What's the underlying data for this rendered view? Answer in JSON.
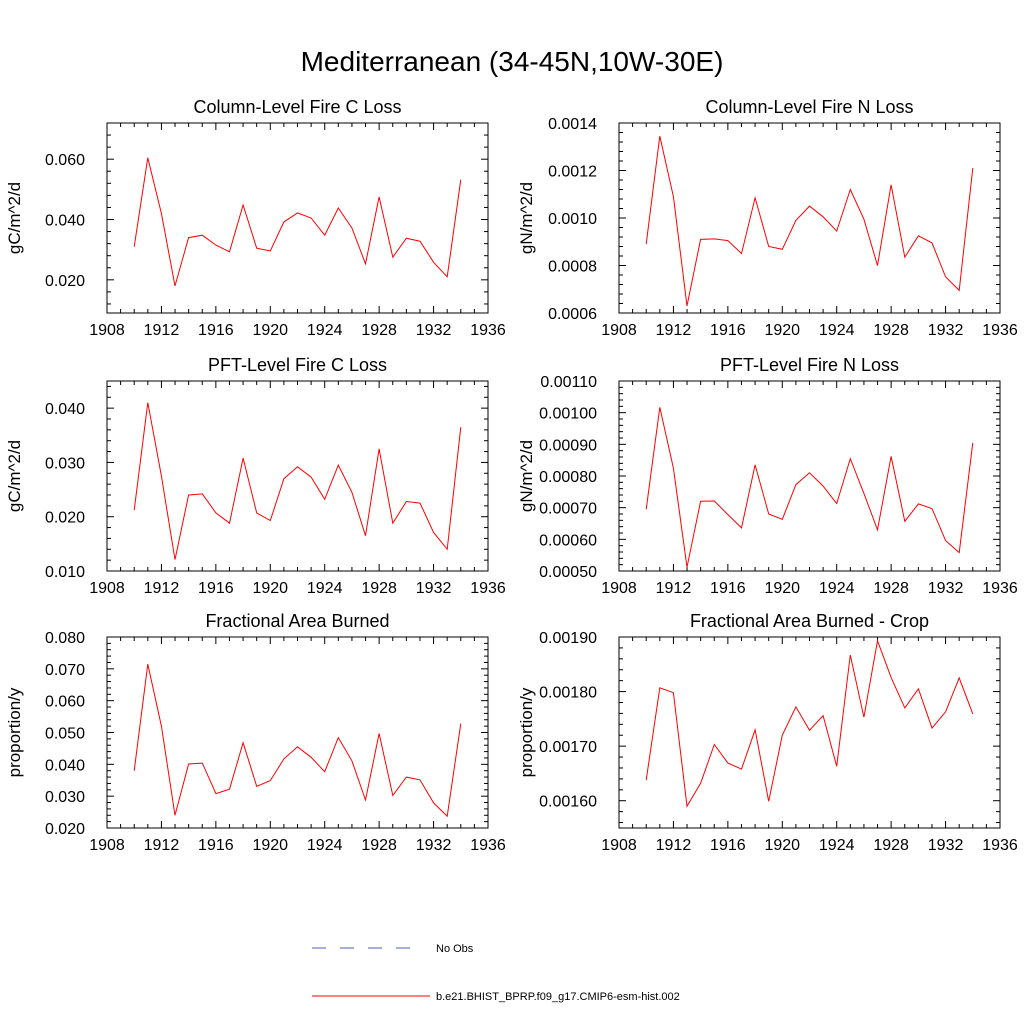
{
  "title": "Mediterranean (34-45N,10W-30E)",
  "legend": {
    "obs_label": "No Obs",
    "obs_color": "#4b5fb8",
    "model_label": "b.e21.BHIST_BPRP.f09_g17.CMIP6-esm-hist.002",
    "model_color": "#ff0000"
  },
  "chart_data": [
    {
      "type": "line",
      "title": "Column-Level Fire C Loss",
      "ylabel": "gC/m^2/d",
      "xlim": [
        1908,
        1936
      ],
      "xticks": [
        "1908",
        "1912",
        "1916",
        "1920",
        "1924",
        "1928",
        "1932",
        "1936"
      ],
      "ylim": [
        0.009,
        0.072
      ],
      "yticks": [
        "0.020",
        "0.040",
        "0.060"
      ],
      "x": [
        1910,
        1911,
        1912,
        1913,
        1914,
        1915,
        1916,
        1917,
        1918,
        1919,
        1920,
        1921,
        1922,
        1923,
        1924,
        1925,
        1926,
        1927,
        1928,
        1929,
        1930,
        1931,
        1932,
        1933,
        1934
      ],
      "series": [
        {
          "values": [
            0.031,
            0.0605,
            0.042,
            0.018,
            0.034,
            0.0348,
            0.0315,
            0.0293,
            0.0448,
            0.0305,
            0.0296,
            0.0392,
            0.0422,
            0.0405,
            0.0348,
            0.0438,
            0.0372,
            0.0253,
            0.0475,
            0.0275,
            0.0338,
            0.0328,
            0.0258,
            0.021,
            0.0532
          ]
        }
      ]
    },
    {
      "type": "line",
      "title": "Column-Level Fire N Loss",
      "ylabel": "gN/m^2/d",
      "xlim": [
        1908,
        1936
      ],
      "xticks": [
        "1908",
        "1912",
        "1916",
        "1920",
        "1924",
        "1928",
        "1932",
        "1936"
      ],
      "ylim": [
        0.0006,
        0.0014
      ],
      "yticks": [
        "0.0006",
        "0.0008",
        "0.0010",
        "0.0012",
        "0.0014"
      ],
      "x": [
        1910,
        1911,
        1912,
        1913,
        1914,
        1915,
        1916,
        1917,
        1918,
        1919,
        1920,
        1921,
        1922,
        1923,
        1924,
        1925,
        1926,
        1927,
        1928,
        1929,
        1930,
        1931,
        1932,
        1933,
        1934
      ],
      "series": [
        {
          "values": [
            0.00089,
            0.001345,
            0.00109,
            0.00063,
            0.00091,
            0.000912,
            0.000905,
            0.00085,
            0.001085,
            0.00088,
            0.000868,
            0.00099,
            0.00105,
            0.001005,
            0.000945,
            0.00112,
            0.000995,
            0.0008,
            0.00114,
            0.000835,
            0.000925,
            0.000895,
            0.000752,
            0.000695,
            0.00121
          ]
        }
      ]
    },
    {
      "type": "line",
      "title": "PFT-Level Fire C Loss",
      "ylabel": "gC/m^2/d",
      "xlim": [
        1908,
        1936
      ],
      "xticks": [
        "1908",
        "1912",
        "1916",
        "1920",
        "1924",
        "1928",
        "1932",
        "1936"
      ],
      "ylim": [
        0.01,
        0.045
      ],
      "yticks": [
        "0.010",
        "0.020",
        "0.030",
        "0.040"
      ],
      "x": [
        1910,
        1911,
        1912,
        1913,
        1914,
        1915,
        1916,
        1917,
        1918,
        1919,
        1920,
        1921,
        1922,
        1923,
        1924,
        1925,
        1926,
        1927,
        1928,
        1929,
        1930,
        1931,
        1932,
        1933,
        1934
      ],
      "series": [
        {
          "values": [
            0.0212,
            0.041,
            0.0275,
            0.0121,
            0.024,
            0.0242,
            0.0207,
            0.0188,
            0.0308,
            0.0207,
            0.0193,
            0.027,
            0.0292,
            0.0273,
            0.0232,
            0.0295,
            0.0245,
            0.0165,
            0.0325,
            0.0188,
            0.0228,
            0.0225,
            0.0171,
            0.014,
            0.0365
          ]
        }
      ]
    },
    {
      "type": "line",
      "title": "PFT-Level Fire N Loss",
      "ylabel": "gN/m^2/d",
      "xlim": [
        1908,
        1936
      ],
      "xticks": [
        "1908",
        "1912",
        "1916",
        "1920",
        "1924",
        "1928",
        "1932",
        "1936"
      ],
      "ylim": [
        0.0005,
        0.0011
      ],
      "yticks": [
        "0.00050",
        "0.00060",
        "0.00070",
        "0.00080",
        "0.00090",
        "0.00100",
        "0.00110"
      ],
      "x": [
        1910,
        1911,
        1912,
        1913,
        1914,
        1915,
        1916,
        1917,
        1918,
        1919,
        1920,
        1921,
        1922,
        1923,
        1924,
        1925,
        1926,
        1927,
        1928,
        1929,
        1930,
        1931,
        1932,
        1933,
        1934
      ],
      "series": [
        {
          "values": [
            0.000695,
            0.001017,
            0.000825,
            0.000512,
            0.00072,
            0.000721,
            0.000678,
            0.000636,
            0.000835,
            0.00068,
            0.000663,
            0.000773,
            0.00081,
            0.000768,
            0.000713,
            0.000855,
            0.000745,
            0.00063,
            0.000862,
            0.000657,
            0.000712,
            0.000697,
            0.000596,
            0.000558,
            0.000905
          ]
        }
      ]
    },
    {
      "type": "line",
      "title": "Fractional Area Burned",
      "ylabel": "proportion/y",
      "xlim": [
        1908,
        1936
      ],
      "xticks": [
        "1908",
        "1912",
        "1916",
        "1920",
        "1924",
        "1928",
        "1932",
        "1936"
      ],
      "ylim": [
        0.02,
        0.08
      ],
      "yticks": [
        "0.020",
        "0.030",
        "0.040",
        "0.050",
        "0.060",
        "0.070",
        "0.080"
      ],
      "x": [
        1910,
        1911,
        1912,
        1913,
        1914,
        1915,
        1916,
        1917,
        1918,
        1919,
        1920,
        1921,
        1922,
        1923,
        1924,
        1925,
        1926,
        1927,
        1928,
        1929,
        1930,
        1931,
        1932,
        1933,
        1934
      ],
      "series": [
        {
          "values": [
            0.038,
            0.0715,
            0.052,
            0.024,
            0.0401,
            0.0404,
            0.0308,
            0.0322,
            0.0468,
            0.0331,
            0.0349,
            0.0417,
            0.0455,
            0.0422,
            0.0377,
            0.0484,
            0.0411,
            0.0288,
            0.0497,
            0.0302,
            0.036,
            0.0351,
            0.0279,
            0.0237,
            0.0528
          ]
        }
      ]
    },
    {
      "type": "line",
      "title": "Fractional Area Burned - Crop",
      "ylabel": "proportion/y",
      "xlim": [
        1908,
        1936
      ],
      "xticks": [
        "1908",
        "1912",
        "1916",
        "1920",
        "1924",
        "1928",
        "1932",
        "1936"
      ],
      "ylim": [
        0.00155,
        0.0019
      ],
      "yticks": [
        "0.00160",
        "0.00170",
        "0.00180",
        "0.00190"
      ],
      "x": [
        1910,
        1911,
        1912,
        1913,
        1914,
        1915,
        1916,
        1917,
        1918,
        1919,
        1920,
        1921,
        1922,
        1923,
        1924,
        1925,
        1926,
        1927,
        1928,
        1929,
        1930,
        1931,
        1932,
        1933,
        1934
      ],
      "series": [
        {
          "values": [
            0.001638,
            0.001807,
            0.001798,
            0.00159,
            0.001632,
            0.001703,
            0.001669,
            0.001658,
            0.00173,
            0.001599,
            0.00172,
            0.001772,
            0.001729,
            0.001756,
            0.001663,
            0.001867,
            0.001753,
            0.001893,
            0.001826,
            0.00177,
            0.001805,
            0.001733,
            0.001763,
            0.001825,
            0.001759
          ]
        }
      ]
    }
  ]
}
